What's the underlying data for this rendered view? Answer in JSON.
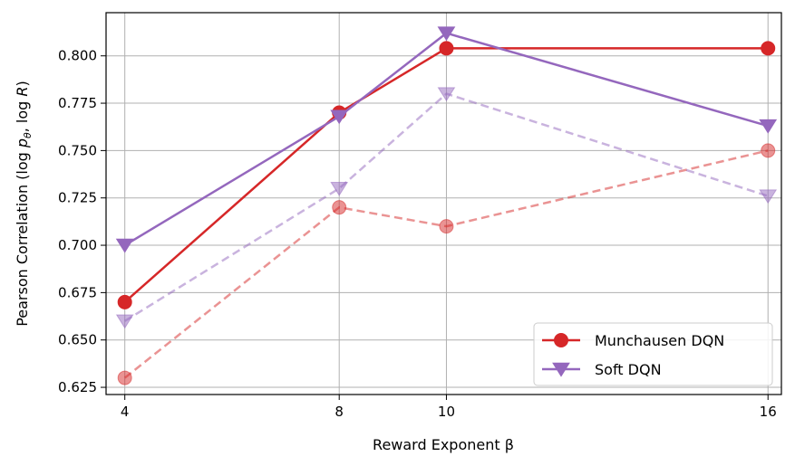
{
  "chart_data": {
    "type": "line",
    "xlabel": "Reward Exponent β",
    "ylabel": "Pearson Correlation (log p_θ, log R)",
    "x": [
      4,
      8,
      10,
      16
    ],
    "xticks": [
      "4",
      "8",
      "10",
      "16"
    ],
    "xlim": [
      3.65,
      16.25
    ],
    "ylim": [
      0.6212,
      0.8228
    ],
    "yticks": [
      "0.625",
      "0.650",
      "0.675",
      "0.700",
      "0.725",
      "0.750",
      "0.775",
      "0.800"
    ],
    "grid": true,
    "legend_position": "lower-right",
    "series": [
      {
        "name": "Munchausen DQN",
        "values": [
          0.67,
          0.77,
          0.804,
          0.804
        ],
        "color": "#d62728",
        "marker": "circle",
        "style": "solid",
        "in_legend": true
      },
      {
        "name": "Soft DQN",
        "values": [
          0.7,
          0.768,
          0.812,
          0.763
        ],
        "color": "#9467bd",
        "marker": "triangle-down",
        "style": "solid",
        "in_legend": true
      },
      {
        "values": [
          0.63,
          0.72,
          0.71,
          0.75
        ],
        "color": "#d62728",
        "marker": "circle",
        "style": "dashed",
        "in_legend": false
      },
      {
        "values": [
          0.66,
          0.73,
          0.78,
          0.726
        ],
        "color": "#9467bd",
        "marker": "triangle-down",
        "style": "dashed",
        "in_legend": false
      }
    ]
  }
}
